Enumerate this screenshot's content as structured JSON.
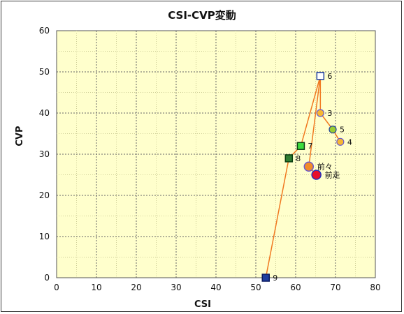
{
  "chart_data": {
    "type": "scatter",
    "title": "CSI-CVP変動",
    "xlabel": "CSI",
    "ylabel": "CVP",
    "xlim": [
      0,
      80
    ],
    "ylim": [
      0,
      60
    ],
    "xticks": [
      0,
      10,
      20,
      30,
      40,
      50,
      60,
      70,
      80
    ],
    "yticks": [
      0,
      10,
      20,
      30,
      40,
      50,
      60
    ],
    "grid": true,
    "plot_background": "#ffffcc",
    "line_color": "#f07820",
    "points": [
      {
        "label": "9",
        "x": 52.5,
        "y": 0,
        "marker": "square",
        "fill": "#1f3f9f",
        "stroke": "#0a1a60"
      },
      {
        "label": "8",
        "x": 58.3,
        "y": 29,
        "marker": "square",
        "fill": "#2e7d32",
        "stroke": "#0b3d10"
      },
      {
        "label": "7",
        "x": 61.3,
        "y": 32,
        "marker": "square",
        "fill": "#3ddc3d",
        "stroke": "#0b3d10"
      },
      {
        "label": "6",
        "x": 66.2,
        "y": 49,
        "marker": "square",
        "fill": "#ffffff",
        "stroke": "#1f3f9f"
      },
      {
        "label": "3",
        "x": 66.2,
        "y": 40,
        "marker": "circle",
        "fill": "#f7b733",
        "stroke": "#6a5acd"
      },
      {
        "label": "5",
        "x": 69.3,
        "y": 36,
        "marker": "circle",
        "fill": "#9acd32",
        "stroke": "#1f3f9f"
      },
      {
        "label": "4",
        "x": 71.2,
        "y": 33,
        "marker": "circle",
        "fill": "#f7b733",
        "stroke": "#6a5acd"
      },
      {
        "label": "前々",
        "x": 63.3,
        "y": 27,
        "marker": "circle-large",
        "fill": "#f28c28",
        "stroke": "#6a5acd"
      },
      {
        "label": "前走",
        "x": 65.2,
        "y": 25,
        "marker": "circle-large",
        "fill": "#e8102a",
        "stroke": "#1f2fbf"
      }
    ],
    "path_order": [
      "9",
      "8",
      "7",
      "6",
      "3",
      "5",
      "4"
    ],
    "path2_order": [
      "6",
      "前々",
      "前走"
    ]
  }
}
